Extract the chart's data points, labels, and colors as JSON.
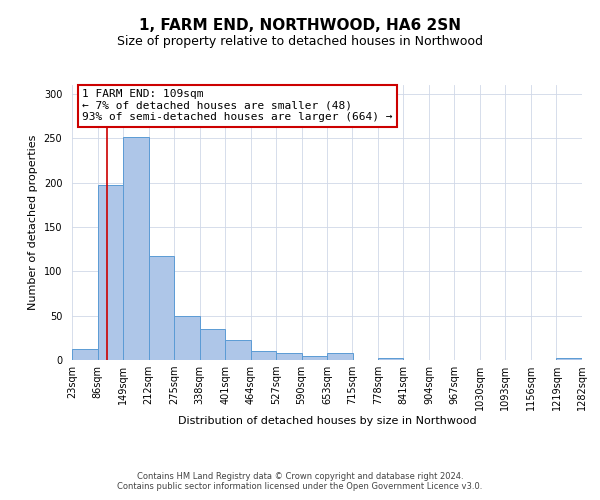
{
  "title": "1, FARM END, NORTHWOOD, HA6 2SN",
  "subtitle": "Size of property relative to detached houses in Northwood",
  "xlabel": "Distribution of detached houses by size in Northwood",
  "ylabel": "Number of detached properties",
  "bin_edges": [
    23,
    86,
    149,
    212,
    275,
    338,
    401,
    464,
    527,
    590,
    653,
    715,
    778,
    841,
    904,
    967,
    1030,
    1093,
    1156,
    1219,
    1282
  ],
  "bar_heights": [
    12,
    197,
    251,
    117,
    50,
    35,
    23,
    10,
    8,
    5,
    8,
    0,
    2,
    0,
    0,
    0,
    0,
    0,
    0,
    2
  ],
  "bar_color": "#aec6e8",
  "bar_edgecolor": "#5b9bd5",
  "property_line_x": 109,
  "property_line_color": "#cc0000",
  "annotation_line1": "1 FARM END: 109sqm",
  "annotation_line2": "← 7% of detached houses are smaller (48)",
  "annotation_line3": "93% of semi-detached houses are larger (664) →",
  "annotation_box_color": "#ffffff",
  "annotation_box_edgecolor": "#cc0000",
  "ylim": [
    0,
    310
  ],
  "yticks": [
    0,
    50,
    100,
    150,
    200,
    250,
    300
  ],
  "footer_line1": "Contains HM Land Registry data © Crown copyright and database right 2024.",
  "footer_line2": "Contains public sector information licensed under the Open Government Licence v3.0.",
  "background_color": "#ffffff",
  "grid_color": "#d0d8e8",
  "title_fontsize": 11,
  "subtitle_fontsize": 9,
  "axis_label_fontsize": 8,
  "ylabel_fontsize": 8,
  "tick_fontsize": 7,
  "annotation_fontsize": 8,
  "footer_fontsize": 6
}
